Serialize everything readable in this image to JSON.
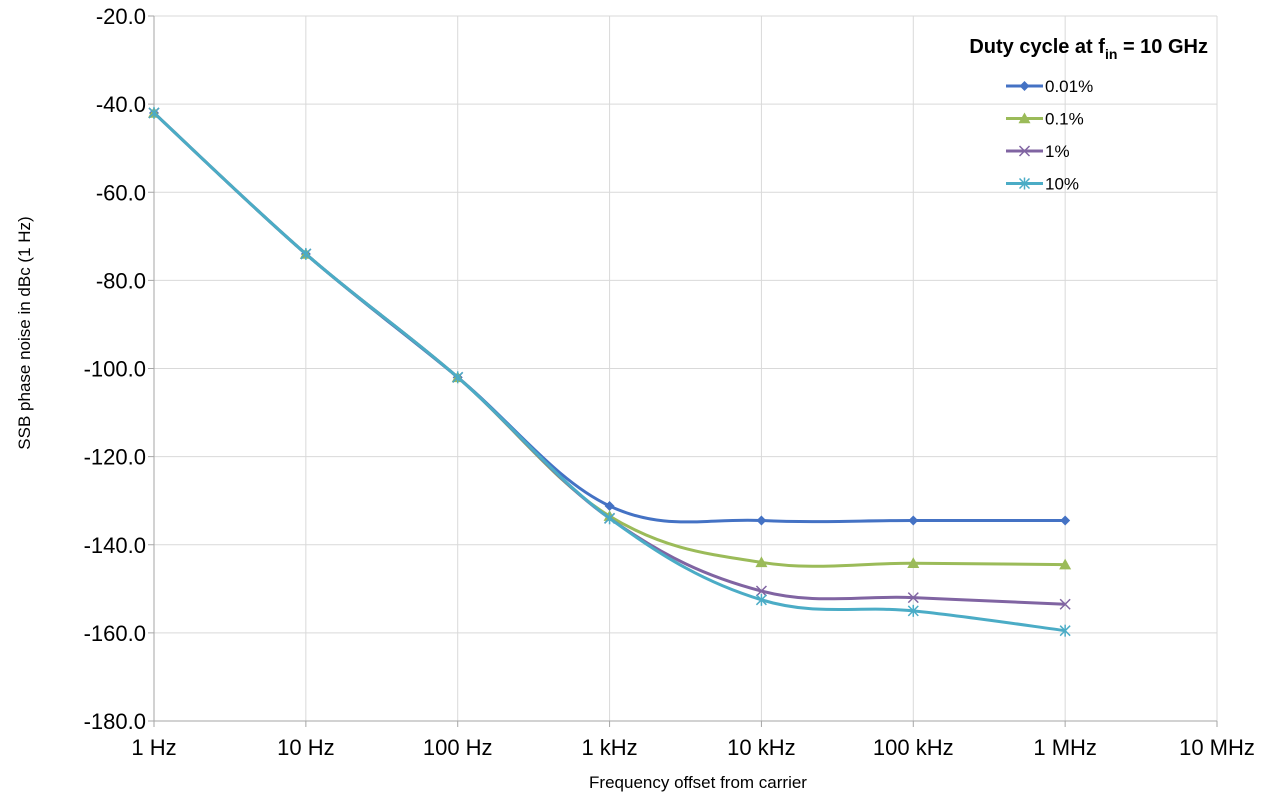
{
  "chart_data": {
    "type": "line",
    "xlabel": "Frequency offset from carrier",
    "ylabel": "SSB phase noise in dBc (1 Hz)",
    "xscale": "log",
    "xlim": [
      1,
      10000000
    ],
    "ylim": [
      -180,
      -20
    ],
    "y_tick_step": 20,
    "x_ticks": [
      1,
      10,
      100,
      1000,
      10000,
      100000,
      1000000,
      10000000
    ],
    "x_tick_labels": [
      "1 Hz",
      "10 Hz",
      "100 Hz",
      "1 kHz",
      "10 kHz",
      "100 kHz",
      "1 MHz",
      "10 MHz"
    ],
    "y_tick_labels": [
      "-20.0",
      "-40.0",
      "-60.0",
      "-80.0",
      "-100.0",
      "-120.0",
      "-140.0",
      "-160.0",
      "-180.0"
    ],
    "grid": true,
    "legend": {
      "title_main": "Duty cycle at f",
      "title_sub": "in",
      "title_tail": " = 10 GHz",
      "placement": "top-right"
    },
    "x": [
      1,
      10,
      100,
      1000,
      10000,
      100000,
      1000000
    ],
    "series": [
      {
        "name": "0.01%",
        "color": "#4472C4",
        "marker": "diamond",
        "values": [
          -42,
          -74,
          -102,
          -131.2,
          -134.5,
          -134.5,
          -134.5
        ]
      },
      {
        "name": "0.1%",
        "color": "#9BBB59",
        "marker": "triangle",
        "values": [
          -42,
          -74,
          -102,
          -133.5,
          -144,
          -144.2,
          -144.5
        ]
      },
      {
        "name": "1%",
        "color": "#8064A2",
        "marker": "x",
        "values": [
          -42,
          -74,
          -102,
          -134,
          -150.5,
          -152,
          -153.5
        ]
      },
      {
        "name": "10%",
        "color": "#4BACC6",
        "marker": "asterisk",
        "values": [
          -42,
          -74,
          -102,
          -134,
          -152.5,
          -155,
          -159.5
        ]
      }
    ]
  }
}
